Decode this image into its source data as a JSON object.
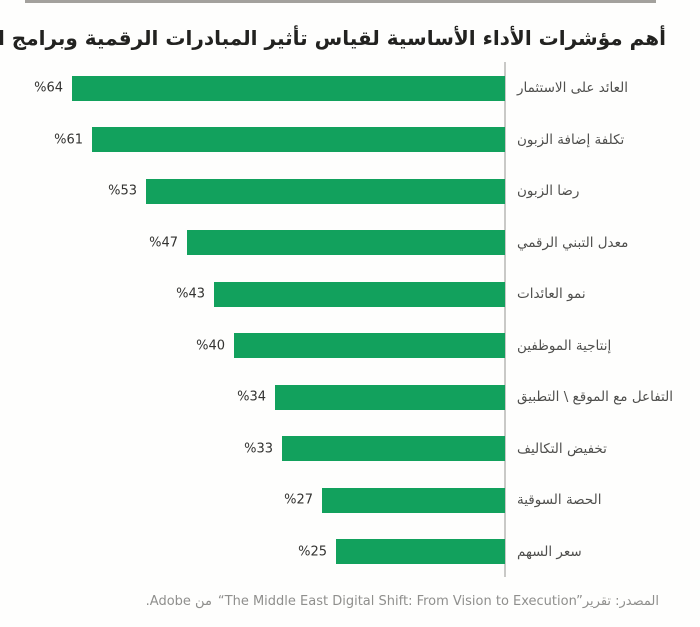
{
  "header": {
    "title": "أهم مؤشرات الأداء الأساسية لقياس تأثير المبادرات الرقمية وبرامج التحول"
  },
  "colors": {
    "bar_green": "#12a15d",
    "axis_gray": "#c9c9c7"
  },
  "chart_data": {
    "type": "bar",
    "orientation": "horizontal-rtl",
    "title": "أهم مؤشرات الأداء الأساسية لقياس تأثير المبادرات الرقمية وبرامج التحول",
    "categories": [
      "العائد على الاستثمار",
      "تكلفة إضافة الزبون",
      "رضا الزبون",
      "معدل التبني الرقمي",
      "نمو العائدات",
      "إنتاجية الموظفين",
      "التفاعل مع الموقع \\ التطبيق",
      "تخفيض التكاليف",
      "الحصة السوقية",
      "سعر السهم"
    ],
    "values": [
      64,
      61,
      53,
      47,
      43,
      40,
      34,
      33,
      27,
      25
    ],
    "value_labels": [
      "%64",
      "%61",
      "%53",
      "%47",
      "%43",
      "%40",
      "%34",
      "%33",
      "%27",
      "%25"
    ],
    "xlabel": "",
    "ylabel": "",
    "xlim": [
      0,
      64
    ],
    "grid": false,
    "legend": "none",
    "bar_color": "#12a15d"
  },
  "footer": {
    "prefix": "المصدر: تقرير",
    "report_title": "“The Middle East Digital Shift: From Vision to Execution”",
    "suffix": "من Adobe."
  }
}
